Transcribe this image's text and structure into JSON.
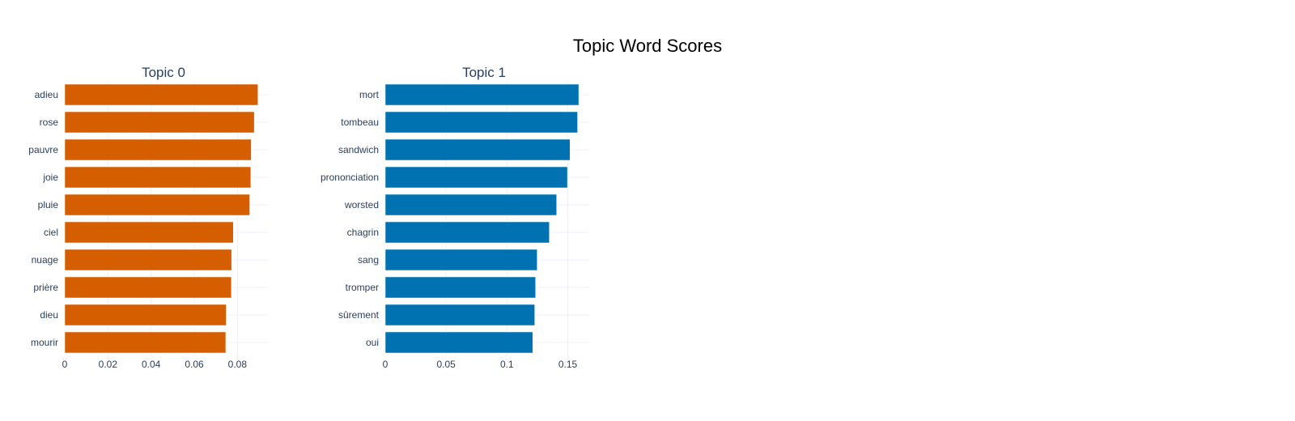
{
  "chart_data": {
    "type": "bar",
    "orientation": "horizontal",
    "title": "Topic Word Scores",
    "grid": true,
    "subplots": [
      {
        "title": "Topic 0",
        "color": "#D55E00",
        "categories": [
          "adieu",
          "rose",
          "pauvre",
          "joie",
          "pluie",
          "ciel",
          "nuage",
          "prière",
          "dieu",
          "mourir"
        ],
        "values": [
          0.0895,
          0.0878,
          0.0864,
          0.0862,
          0.0857,
          0.0781,
          0.0773,
          0.0772,
          0.0748,
          0.0746
        ],
        "xlim": [
          0,
          0.0945
        ],
        "xticks": [
          0,
          0.02,
          0.04,
          0.06,
          0.08
        ],
        "xtick_labels": [
          "0",
          "0.02",
          "0.04",
          "0.06",
          "0.08"
        ]
      },
      {
        "title": "Topic 1",
        "color": "#0072B2",
        "categories": [
          "mort",
          "tombeau",
          "sandwich",
          "prononciation",
          "worsted",
          "chagrin",
          "sang",
          "tromper",
          "sûrement",
          "oui"
        ],
        "values": [
          0.159,
          0.158,
          0.1518,
          0.1497,
          0.1408,
          0.1348,
          0.1248,
          0.1235,
          0.1228,
          0.1212
        ],
        "xlim": [
          0,
          0.1676
        ],
        "xticks": [
          0,
          0.05,
          0.1,
          0.15
        ],
        "xtick_labels": [
          "0",
          "0.05",
          "0.1",
          "0.15"
        ]
      }
    ]
  }
}
